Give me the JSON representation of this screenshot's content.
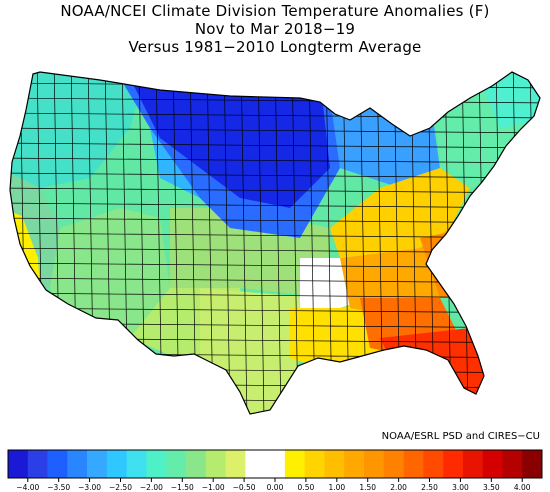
{
  "title_lines": [
    "NOAA/NCEI Climate Division Temperature Anomalies (F)",
    "Nov to Mar 2018−19",
    "Versus 1981−2010 Longterm Average"
  ],
  "credit": "NOAA/ESRL PSD and CIRES−CU",
  "legend": {
    "ticks": [
      "−4.00",
      "−3.50",
      "−3.00",
      "−2.50",
      "−2.00",
      "−1.50",
      "−1.00",
      "−0.50",
      "0.00",
      "0.50",
      "1.00",
      "1.50",
      "2.00",
      "2.50",
      "3.00",
      "3.50",
      "4.00"
    ],
    "colors": [
      "#1919d6",
      "#2a3fe6",
      "#1e5fff",
      "#2a86ff",
      "#35a9ff",
      "#2ec7ff",
      "#3fe0f0",
      "#4ef0c8",
      "#63ecaa",
      "#8ae68a",
      "#b6ec6e",
      "#dcf06a",
      "#ffffff",
      "#ffffff",
      "#fff000",
      "#ffd400",
      "#ffbe00",
      "#ffa800",
      "#ff9600",
      "#ff8100",
      "#ff6600",
      "#ff4a00",
      "#ff2a00",
      "#e81400",
      "#d40000",
      "#b50000",
      "#8a0000"
    ]
  },
  "map": {
    "outline_color": "#000000",
    "region_colors": {
      "northwest": "#45e0c8",
      "north_central_deep": "#1428e6",
      "north_central": "#2a6cff",
      "northern_plains_edge": "#30b6ff",
      "great_lakes": "#3aa0ff",
      "west": "#60e8a4",
      "great_basin": "#8ae68a",
      "california": "#7ad8a0",
      "california_coast": "#fff000",
      "southwest": "#b6ec6e",
      "southern_plains": "#9ee07a",
      "texas": "#c8ee70",
      "neutral": "#ffffff",
      "gulf_coast": "#ffe000",
      "southeast": "#ffa800",
      "carolinas": "#ff8a00",
      "georgia": "#ff6e00",
      "florida": "#ff3000",
      "mid_atlantic": "#ffd000",
      "northeast": "#63ecaa",
      "new_england": "#4ef0d0"
    }
  }
}
